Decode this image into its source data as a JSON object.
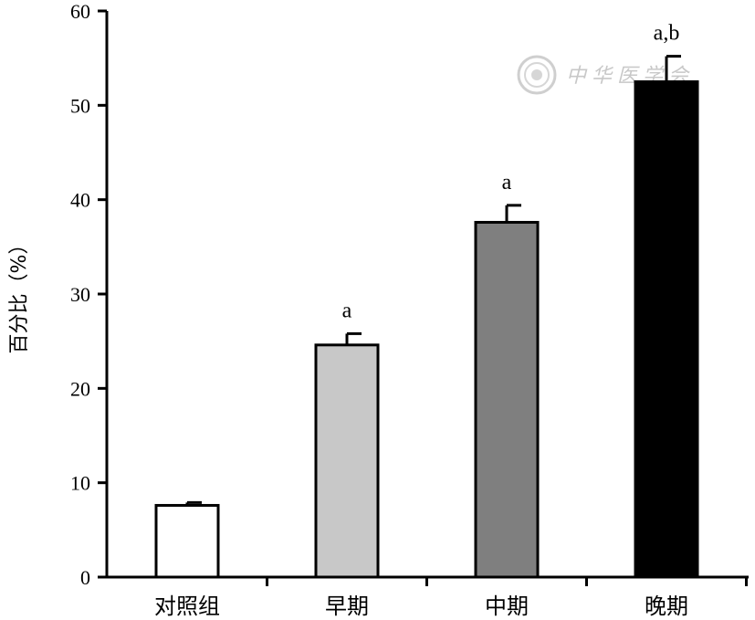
{
  "chart_data": {
    "type": "bar",
    "title": "",
    "xlabel": "",
    "ylabel": "百分比（%）",
    "ylim": [
      0,
      60
    ],
    "yticks": [
      0,
      10,
      20,
      30,
      40,
      50,
      60
    ],
    "grid": false,
    "categories": [
      "对照组",
      "早期",
      "中期",
      "晚期"
    ],
    "values": [
      7.6,
      24.6,
      37.6,
      52.5
    ],
    "errors": [
      0.3,
      1.2,
      1.8,
      2.7
    ],
    "significance": [
      "",
      "a",
      "a",
      "a,b"
    ],
    "bar_colors": [
      "#ffffff",
      "#c8c8c8",
      "#7f7f7f",
      "#000000"
    ]
  },
  "watermark": {
    "text": "中华医学会",
    "icon": "society-seal-icon"
  }
}
